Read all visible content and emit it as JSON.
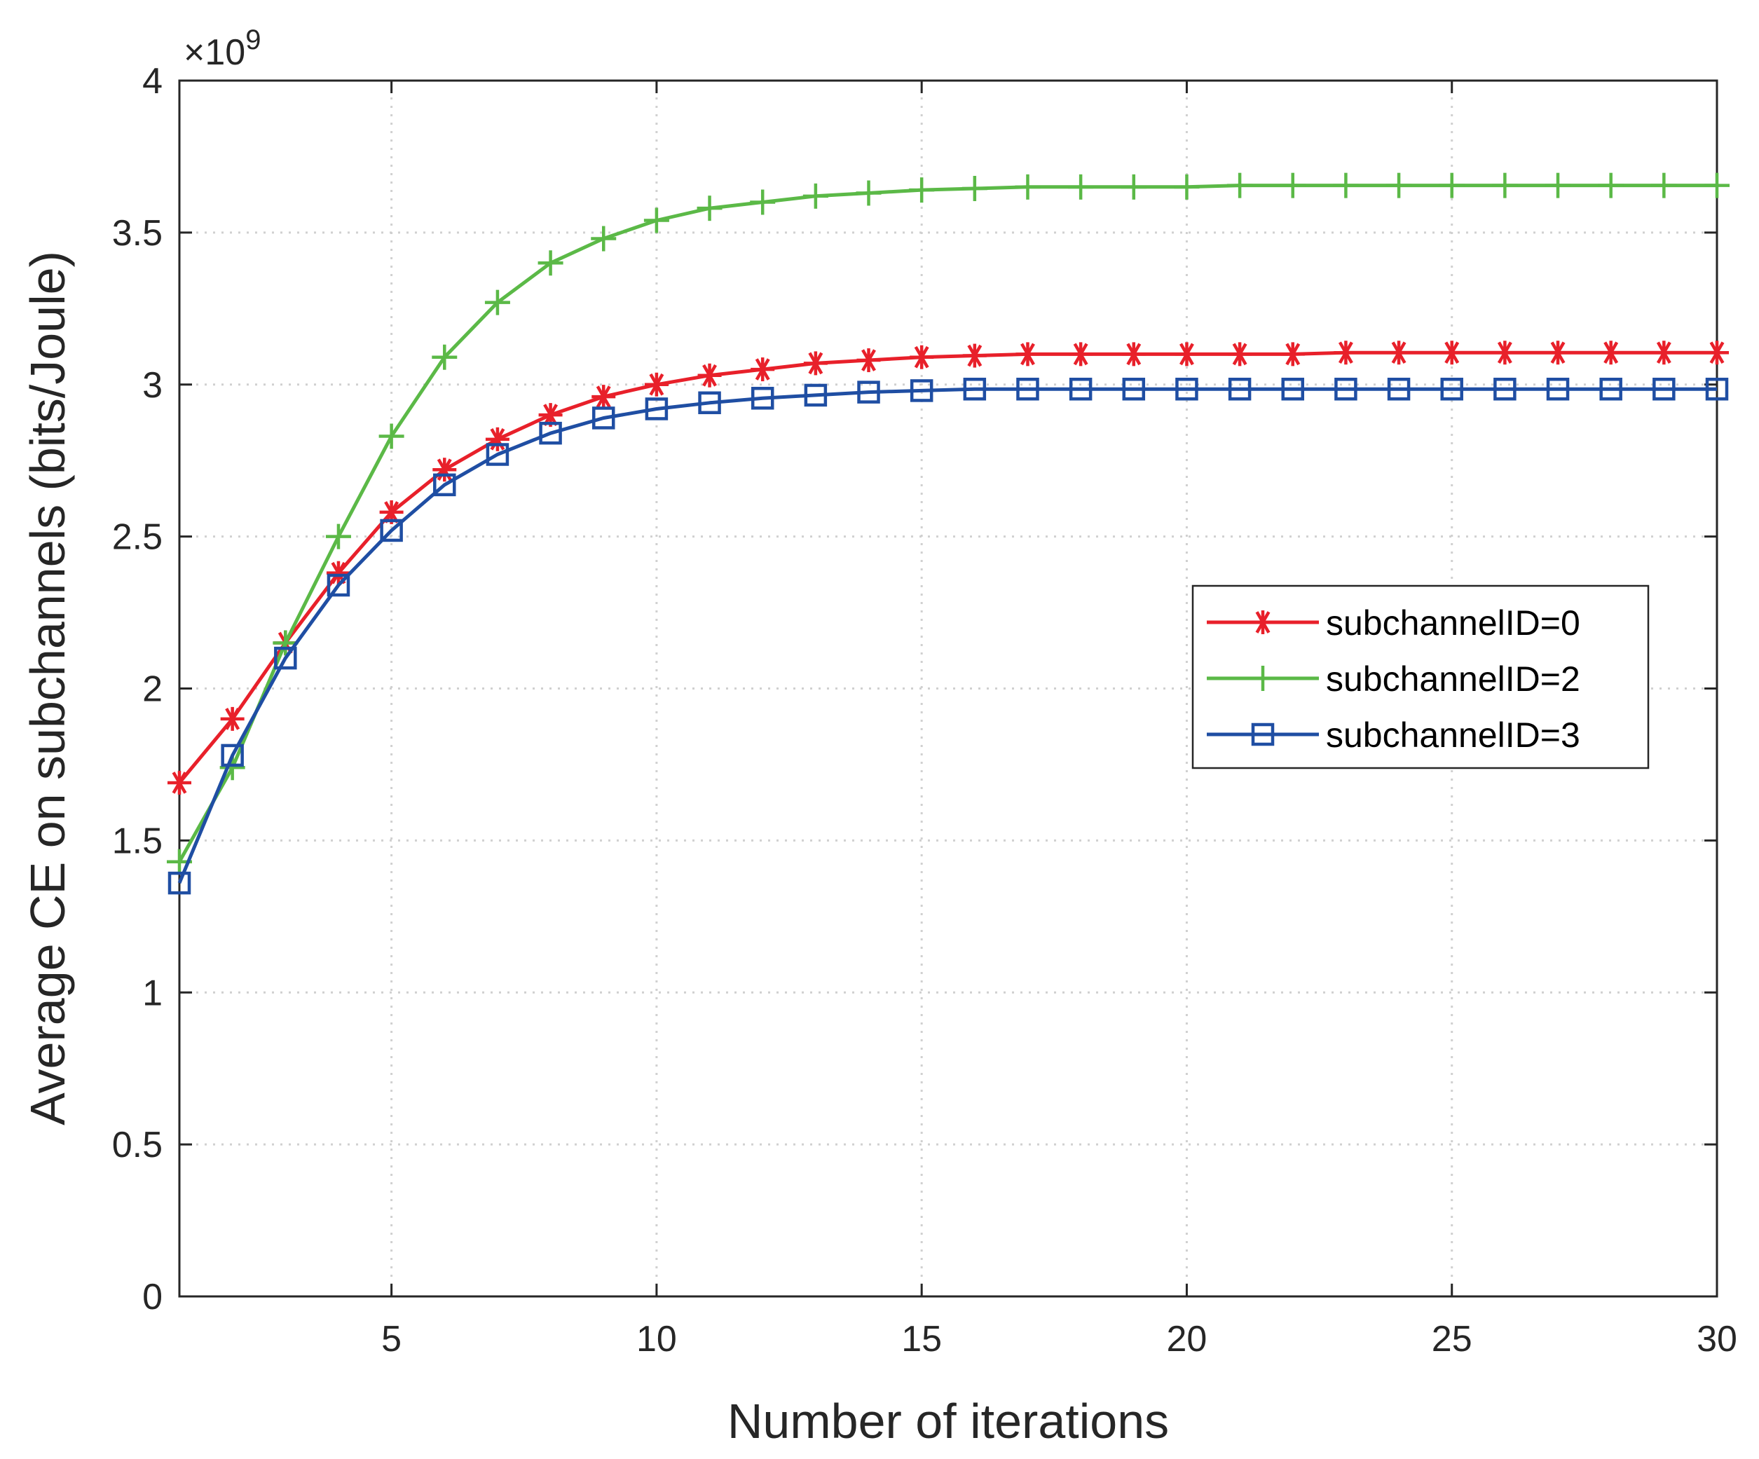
{
  "chart_data": {
    "type": "line",
    "title": "",
    "xlabel": "Number of iterations",
    "ylabel": "Average CE on subchannels (bits/Joule)",
    "y_exponent_label": "×10",
    "y_exponent_power": "9",
    "xlim": [
      1,
      30
    ],
    "ylim": [
      0,
      4
    ],
    "xticks": [
      5,
      10,
      15,
      20,
      25,
      30
    ],
    "xtick_labels": [
      "5",
      "10",
      "15",
      "20",
      "25",
      "30"
    ],
    "yticks": [
      0,
      0.5,
      1,
      1.5,
      2,
      2.5,
      3,
      3.5,
      4
    ],
    "ytick_labels": [
      "0",
      "0.5",
      "1",
      "1.5",
      "2",
      "2.5",
      "3",
      "3.5",
      "4"
    ],
    "grid": true,
    "legend_position": "right",
    "x": [
      1,
      2,
      3,
      4,
      5,
      6,
      7,
      8,
      9,
      10,
      11,
      12,
      13,
      14,
      15,
      16,
      17,
      18,
      19,
      20,
      21,
      22,
      23,
      24,
      25,
      26,
      27,
      28,
      29,
      30
    ],
    "series": [
      {
        "name": "subchannelID=0",
        "color": "#e8202a",
        "marker": "asterisk",
        "values": [
          1.69,
          1.9,
          2.15,
          2.38,
          2.58,
          2.72,
          2.82,
          2.9,
          2.96,
          3.0,
          3.03,
          3.05,
          3.07,
          3.08,
          3.09,
          3.095,
          3.1,
          3.1,
          3.1,
          3.1,
          3.1,
          3.1,
          3.105,
          3.105,
          3.105,
          3.105,
          3.105,
          3.105,
          3.105,
          3.105
        ]
      },
      {
        "name": "subchannelID=2",
        "color": "#5bb947",
        "marker": "plus",
        "values": [
          1.43,
          1.74,
          2.15,
          2.5,
          2.83,
          3.09,
          3.27,
          3.4,
          3.48,
          3.54,
          3.58,
          3.6,
          3.62,
          3.63,
          3.64,
          3.645,
          3.65,
          3.65,
          3.65,
          3.65,
          3.655,
          3.655,
          3.655,
          3.655,
          3.655,
          3.655,
          3.655,
          3.655,
          3.655,
          3.655
        ]
      },
      {
        "name": "subchannelID=3",
        "color": "#1f4ea3",
        "marker": "square",
        "values": [
          1.36,
          1.78,
          2.1,
          2.34,
          2.52,
          2.67,
          2.77,
          2.84,
          2.89,
          2.92,
          2.94,
          2.955,
          2.965,
          2.975,
          2.98,
          2.985,
          2.985,
          2.985,
          2.985,
          2.985,
          2.985,
          2.985,
          2.985,
          2.985,
          2.985,
          2.985,
          2.985,
          2.985,
          2.985,
          2.985
        ]
      }
    ]
  }
}
